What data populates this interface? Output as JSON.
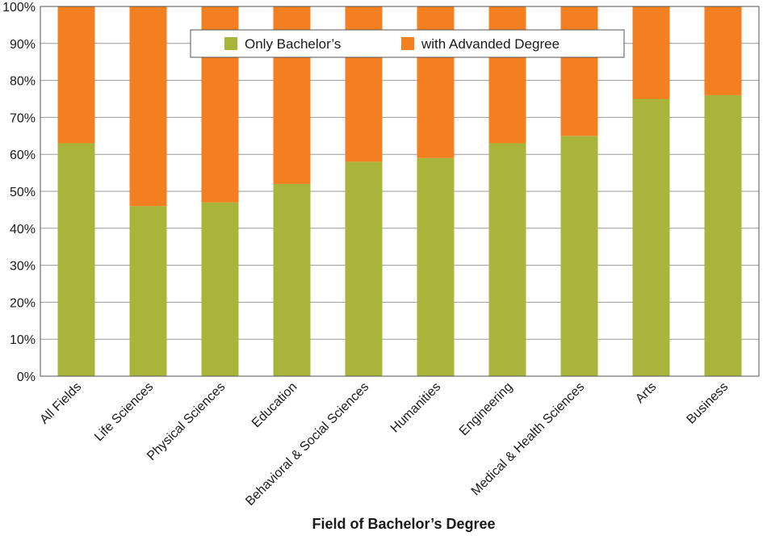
{
  "chart_data": {
    "type": "bar",
    "stacked": true,
    "categories": [
      "All Fields",
      "Life Sciences",
      "Physical Sciences",
      "Education",
      "Behavioral & Social Sciences",
      "Humanities",
      "Engineering",
      "Medical & Health Sciences",
      "Arts",
      "Business"
    ],
    "series": [
      {
        "name": "Only Bachelor's",
        "color": "#a8b53a",
        "values": [
          63,
          46,
          47,
          52,
          58,
          59,
          63,
          65,
          75,
          76
        ]
      },
      {
        "name": "with Advanded Degree",
        "color": "#f47f20",
        "values": [
          37,
          54,
          53,
          48,
          42,
          41,
          37,
          35,
          25,
          24
        ]
      }
    ],
    "xlabel": "Field of Bachelor’s Degree",
    "ylabel": "",
    "ylim": [
      0,
      100
    ],
    "yticks": [
      "0%",
      "10%",
      "20%",
      "30%",
      "40%",
      "50%",
      "60%",
      "70%",
      "80%",
      "90%",
      "100%"
    ],
    "grid": true,
    "legend_position": "top-center",
    "legend": [
      "Only Bachelor’s",
      "with Advanded Degree"
    ]
  }
}
